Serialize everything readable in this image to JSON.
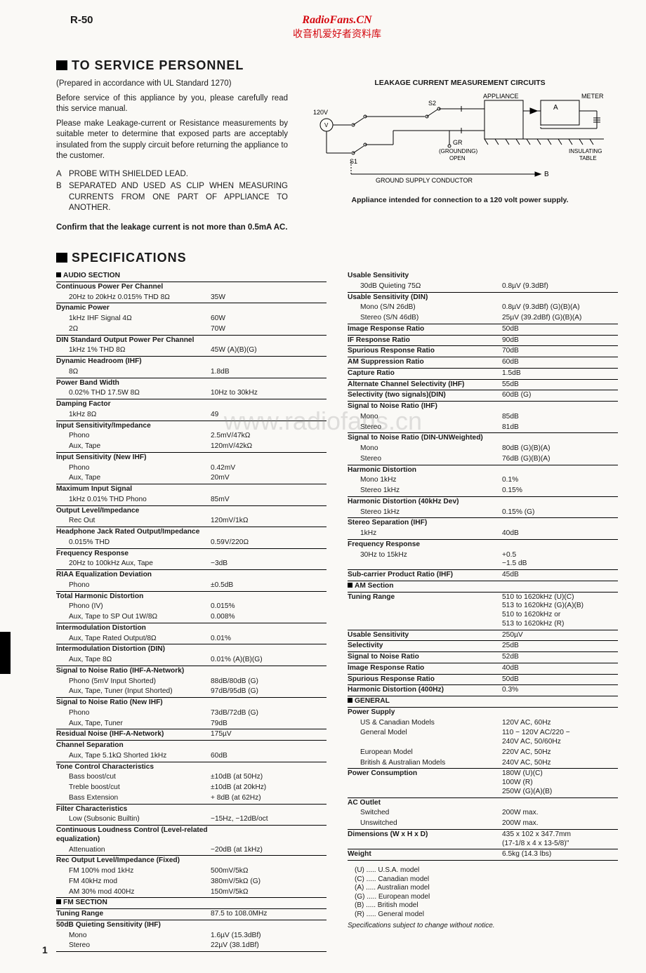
{
  "model": "R-50",
  "watermark": {
    "site": "RadioFans.CN",
    "cn": "收音机爱好者资料库",
    "center": "www.radiofans.cn"
  },
  "hdr": {
    "service": "TO SERVICE PERSONNEL",
    "specs": "SPECIFICATIONS"
  },
  "intro": {
    "p1": "(Prepared in accordance with UL Standard 1270)",
    "p2": "Before service of this appliance by you, please carefully read this service manual.",
    "p3": "Please make Leakage-current or Resistance measurements by suitable meter to determine that exposed parts are acceptably insulated from the supply circuit before returning the appliance to the customer.",
    "a": "PROBE WITH SHIELDED LEAD.",
    "b": "SEPARATED AND USED AS CLIP WHEN MEASURING CURRENTS FROM ONE PART OF APPLIANCE TO ANOTHER.",
    "confirm": "Confirm that the leakage current is not more than 0.5mA AC."
  },
  "diagram": {
    "title": "LEAKAGE CURRENT MEASUREMENT CIRCUITS",
    "caption": "Appliance intended for connection to a 120 volt power supply.",
    "labels": {
      "v120": "120V",
      "v": "V",
      "s1": "S1",
      "s2": "S2",
      "appliance": "APPLIANCE",
      "meter": "METER",
      "gr": "GR",
      "gropen": "(GROUNDING)\nOPEN",
      "ins": "INSULATING\nTABLE",
      "a": "A",
      "b": "B",
      "gsc": "GROUND SUPPLY CONDUCTOR"
    }
  },
  "specsL": [
    {
      "sec": "AUDIO SECTION"
    },
    {
      "h": "Continuous Power Per Channel"
    },
    {
      "s": "20Hz to 20kHz 0.015% THD 8Ω",
      "v": "35W"
    },
    {
      "h": "Dynamic Power"
    },
    {
      "s": "1kHz IHF Signal 4Ω",
      "v": "60W",
      "nb": true
    },
    {
      "s": "                    2Ω",
      "v": "70W"
    },
    {
      "h": "DIN Standard Output Power Per Channel"
    },
    {
      "s": "1kHz 1% THD 8Ω",
      "v": "45W (A)(B)(G)"
    },
    {
      "h": "Dynamic Headroom (IHF)"
    },
    {
      "s": "8Ω",
      "v": "1.8dB"
    },
    {
      "h": "Power Band Width"
    },
    {
      "s": "0.02% THD 17.5W 8Ω",
      "v": "10Hz to 30kHz"
    },
    {
      "h": "Damping Factor"
    },
    {
      "s": "1kHz 8Ω",
      "v": "49"
    },
    {
      "h": "Input Sensitivity/Impedance"
    },
    {
      "s": "Phono",
      "v": "2.5mV/47kΩ",
      "nb": true
    },
    {
      "s": "Aux, Tape",
      "v": "120mV/42kΩ"
    },
    {
      "h": "Input Sensitivity (New IHF)"
    },
    {
      "s": "Phono",
      "v": "0.42mV",
      "nb": true
    },
    {
      "s": "Aux, Tape",
      "v": "20mV"
    },
    {
      "h": "Maximum Input Signal"
    },
    {
      "s": "1kHz 0.01% THD Phono",
      "v": "85mV"
    },
    {
      "h": "Output Level/Impedance"
    },
    {
      "s": "Rec Out",
      "v": "120mV/1kΩ"
    },
    {
      "h": "Headphone Jack Rated Output/Impedance"
    },
    {
      "s": "0.015% THD",
      "v": "0.59V/220Ω"
    },
    {
      "h": "Frequency Response"
    },
    {
      "s": "20Hz to 100kHz Aux, Tape",
      "v": "−3dB"
    },
    {
      "h": "RIAA Equalization Deviation"
    },
    {
      "s": "Phono",
      "v": "±0.5dB"
    },
    {
      "h": "Total Harmonic Distortion"
    },
    {
      "s": "Phono (IV)",
      "v": "0.015%",
      "nb": true
    },
    {
      "s": "Aux, Tape to SP Out 1W/8Ω",
      "v": "0.008%"
    },
    {
      "h": "Intermodulation Distortion"
    },
    {
      "s": "Aux, Tape Rated Output/8Ω",
      "v": "0.01%"
    },
    {
      "h": "Intermodulation Distortion (DIN)"
    },
    {
      "s": "Aux, Tape 8Ω",
      "v": "0.01% (A)(B)(G)"
    },
    {
      "h": "Signal to Noise Ratio (IHF-A-Network)"
    },
    {
      "s": "Phono      (5mV Input Shorted)",
      "v": "88dB/80dB (G)",
      "nb": true
    },
    {
      "s": "Aux, Tape, Tuner (Input Shorted)",
      "v": "97dB/95dB (G)"
    },
    {
      "h": "Signal to Noise Ratio (New IHF)"
    },
    {
      "s": "Phono",
      "v": "73dB/72dB (G)",
      "nb": true
    },
    {
      "s": "Aux, Tape, Tuner",
      "v": "79dB"
    },
    {
      "l": "Residual Noise (IHF-A-Network)",
      "v": "175µV"
    },
    {
      "h": "Channel Separation"
    },
    {
      "s": "Aux, Tape 5.1kΩ Shorted 1kHz",
      "v": "60dB"
    },
    {
      "h": "Tone Control Characteristics"
    },
    {
      "s": "Bass boost/cut",
      "v": "±10dB (at 50Hz)",
      "nb": true
    },
    {
      "s": "Treble boost/cut",
      "v": "±10dB (at 20kHz)",
      "nb": true
    },
    {
      "s": "Bass Extension",
      "v": "+ 8dB (at 62Hz)"
    },
    {
      "h": "Filter Characteristics"
    },
    {
      "s": "Low (Subsonic Builtin)",
      "v": "−15Hz, −12dB/oct"
    },
    {
      "h": "Continuous Loudness Control (Level-related equalization)"
    },
    {
      "s": "Attenuation",
      "v": "−20dB (at 1kHz)"
    },
    {
      "h": "Rec Output Level/Impedance (Fixed)"
    },
    {
      "s": "FM 100% mod   1kHz",
      "v": "500mV/5kΩ",
      "nb": true
    },
    {
      "s": "FM 40kHz mod",
      "v": "380mV/5kΩ (G)",
      "nb": true
    },
    {
      "s": "AM 30% mod   400Hz",
      "v": "150mV/5kΩ"
    },
    {
      "sec": "FM SECTION"
    },
    {
      "l": "Tuning Range",
      "v": "87.5 to 108.0MHz"
    },
    {
      "h": "50dB Quieting Sensitivity (IHF)"
    },
    {
      "s": "Mono",
      "v": "1.6µV (15.3dBf)",
      "nb": true
    },
    {
      "s": "Stereo",
      "v": "22µV (38.1dBf)"
    }
  ],
  "specsR": [
    {
      "h": "Usable Sensitivity"
    },
    {
      "s": "30dB Quieting 75Ω",
      "v": "0.8µV (9.3dBf)"
    },
    {
      "h": "Usable Sensitivity (DIN)"
    },
    {
      "s": "Mono (S/N 26dB)",
      "v": "0.8µV (9.3dBf) (G)(B)(A)",
      "nb": true
    },
    {
      "s": "Stereo (S/N 46dB)",
      "v": "25µV (39.2dBf) (G)(B)(A)"
    },
    {
      "l": "Image Response Ratio",
      "v": "50dB"
    },
    {
      "l": "IF Response Ratio",
      "v": "90dB"
    },
    {
      "l": "Spurious Response Ratio",
      "v": "70dB"
    },
    {
      "l": "AM Suppression Ratio",
      "v": "60dB"
    },
    {
      "l": "Capture Ratio",
      "v": "1.5dB"
    },
    {
      "l": "Alternate Channel Selectivity (IHF)",
      "v": "55dB"
    },
    {
      "l": "Selectivity (two signals)(DIN)",
      "v": "60dB (G)"
    },
    {
      "h": "Signal to Noise Ratio (IHF)"
    },
    {
      "s": "Mono",
      "v": "85dB",
      "nb": true
    },
    {
      "s": "Stereo",
      "v": "81dB"
    },
    {
      "h": "Signal to Noise Ratio (DIN-UNWeighted)"
    },
    {
      "s": "Mono",
      "v": "80dB (G)(B)(A)",
      "nb": true
    },
    {
      "s": "Stereo",
      "v": "76dB (G)(B)(A)"
    },
    {
      "h": "Harmonic Distortion"
    },
    {
      "s": "Mono   1kHz",
      "v": "0.1%",
      "nb": true
    },
    {
      "s": "Stereo 1kHz",
      "v": "0.15%"
    },
    {
      "h": "Harmonic Distortion (40kHz Dev)"
    },
    {
      "s": "Stereo 1kHz",
      "v": "0.15% (G)"
    },
    {
      "h": "Stereo Separation (IHF)"
    },
    {
      "s": "1kHz",
      "v": "40dB"
    },
    {
      "h": "Frequency Response"
    },
    {
      "s": "30Hz to 15kHz",
      "v": "+0.5\n−1.5 dB"
    },
    {
      "l": "Sub-carrier Product Ratio (IHF)",
      "v": "45dB"
    },
    {
      "sec": "AM Section"
    },
    {
      "l": "Tuning Range",
      "v": "510 to 1620kHz (U)(C)\n513 to 1620kHz (G)(A)(B)\n510 to 1620kHz or\n513 to 1620kHz (R)"
    },
    {
      "l": "Usable Sensitivity",
      "v": "250µV"
    },
    {
      "l": "Selectivity",
      "v": "25dB"
    },
    {
      "l": "Signal to Noise Ratio",
      "v": "52dB"
    },
    {
      "l": "Image Response Ratio",
      "v": "40dB"
    },
    {
      "l": "Spurious Response Ratio",
      "v": "50dB"
    },
    {
      "l": "Harmonic Distortion (400Hz)",
      "v": "0.3%"
    },
    {
      "sec": "GENERAL"
    },
    {
      "h": "Power Supply"
    },
    {
      "s": "US & Canadian Models",
      "v": "120V AC, 60Hz",
      "nb": true
    },
    {
      "s": "General Model",
      "v": "110 − 120V AC/220 −\n240V AC, 50/60Hz",
      "nb": true
    },
    {
      "s": "European Model",
      "v": "220V AC, 50Hz",
      "nb": true
    },
    {
      "s": "British & Australian Models",
      "v": "240V AC, 50Hz"
    },
    {
      "l": "Power Consumption",
      "v": "180W (U)(C)\n100W (R)\n250W (G)(A)(B)"
    },
    {
      "h": "AC Outlet"
    },
    {
      "s": "Switched",
      "v": "200W max.",
      "nb": true
    },
    {
      "s": "Unswitched",
      "v": "200W max."
    },
    {
      "l": "Dimensions (W x H x D)",
      "v": "435 x 102 x 347.7mm\n(17-1/8 x 4 x 13-5/8)\""
    },
    {
      "l": "Weight",
      "v": "6.5kg (14.3 lbs)"
    }
  ],
  "legend": [
    "(U) ..... U.S.A. model",
    "(C) ..... Canadian model",
    "(A) ..... Australian model",
    "(G) ..... European model",
    "(B) ..... British model",
    "(R) ..... General model"
  ],
  "footnote": "Specifications subject to change without notice.",
  "pageNo": "1"
}
